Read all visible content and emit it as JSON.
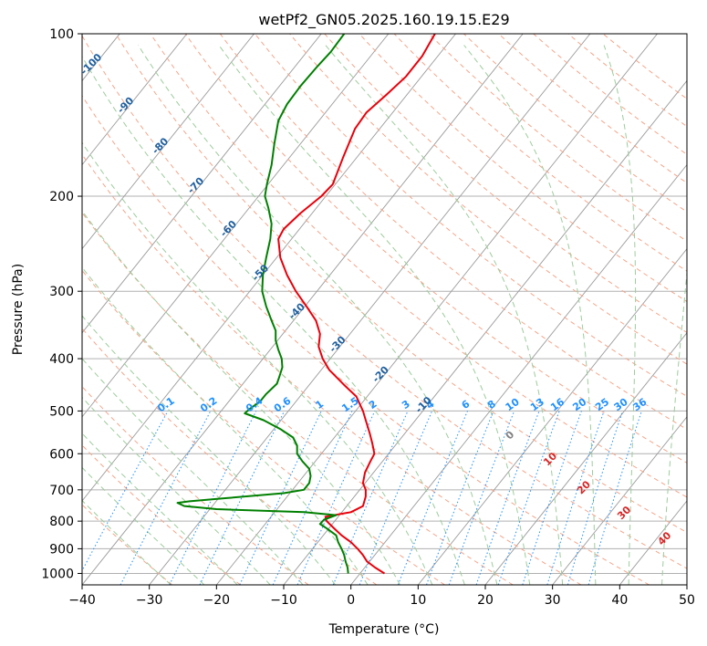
{
  "chart_data": {
    "type": "line",
    "title": "wetPf2_GN05.2025.160.19.15.E29",
    "xlabel": "Temperature (°C)",
    "ylabel": "Pressure (hPa)",
    "xlim": [
      -40,
      50
    ],
    "ylim": [
      1050,
      100
    ],
    "y_scale": "log",
    "grid": true,
    "x_ticks": [
      -40,
      -30,
      -20,
      -10,
      0,
      10,
      20,
      30,
      40,
      50
    ],
    "x_tick_labels": [
      "−40",
      "−30",
      "−20",
      "−10",
      "0",
      "10",
      "20",
      "30",
      "40",
      "50"
    ],
    "y_ticks": [
      1000,
      900,
      800,
      700,
      600,
      500,
      400,
      300,
      200,
      100
    ],
    "y_tick_labels": [
      "1000",
      "900",
      "800",
      "700",
      "600",
      "500",
      "400",
      "300",
      "200",
      "100"
    ],
    "series": [
      {
        "color": "#e8000b",
        "points": [
          [
            1000,
            5.0
          ],
          [
            975,
            3.6
          ],
          [
            950,
            2.4
          ],
          [
            925,
            1.8
          ],
          [
            900,
            1.0
          ],
          [
            875,
            0.0
          ],
          [
            850,
            -1.4
          ],
          [
            825,
            -2.5
          ],
          [
            800,
            -3.6
          ],
          [
            785,
            -3.8
          ],
          [
            770,
            0.0
          ],
          [
            750,
            1.8
          ],
          [
            720,
            2.2
          ],
          [
            700,
            2.2
          ],
          [
            680,
            1.8
          ],
          [
            650,
            2.1
          ],
          [
            620,
            2.9
          ],
          [
            600,
            3.5
          ],
          [
            575,
            3.2
          ],
          [
            550,
            2.8
          ],
          [
            520,
            2.2
          ],
          [
            500,
            1.8
          ],
          [
            470,
            0.8
          ],
          [
            450,
            -0.8
          ],
          [
            420,
            -3.2
          ],
          [
            400,
            -4.2
          ],
          [
            380,
            -4.8
          ],
          [
            360,
            -4.6
          ],
          [
            340,
            -5.2
          ],
          [
            320,
            -6.6
          ],
          [
            300,
            -8.2
          ],
          [
            280,
            -9.5
          ],
          [
            260,
            -10.5
          ],
          [
            240,
            -10.8
          ],
          [
            230,
            -10.0
          ],
          [
            215,
            -7.5
          ],
          [
            200,
            -4.4
          ],
          [
            190,
            -2.7
          ],
          [
            170,
            -1.2
          ],
          [
            150,
            0.6
          ],
          [
            140,
            2.3
          ],
          [
            130,
            5.2
          ],
          [
            120,
            8.2
          ],
          [
            110,
            10.6
          ],
          [
            100,
            12.5
          ]
        ]
      },
      {
        "color": "#008000",
        "points": [
          [
            1000,
            -0.4
          ],
          [
            975,
            -0.5
          ],
          [
            950,
            -0.8
          ],
          [
            925,
            -1.0
          ],
          [
            900,
            -1.4
          ],
          [
            875,
            -1.9
          ],
          [
            850,
            -2.2
          ],
          [
            825,
            -3.6
          ],
          [
            810,
            -4.6
          ],
          [
            795,
            -4.0
          ],
          [
            780,
            -2.2
          ],
          [
            770,
            -7.0
          ],
          [
            760,
            -20.0
          ],
          [
            750,
            -24.8
          ],
          [
            740,
            -25.8
          ],
          [
            735,
            -24.0
          ],
          [
            725,
            -18.5
          ],
          [
            710,
            -10.0
          ],
          [
            700,
            -7.0
          ],
          [
            680,
            -6.2
          ],
          [
            660,
            -6.0
          ],
          [
            640,
            -6.2
          ],
          [
            620,
            -7.2
          ],
          [
            600,
            -8.0
          ],
          [
            580,
            -8.0
          ],
          [
            560,
            -8.6
          ],
          [
            540,
            -10.5
          ],
          [
            520,
            -13.0
          ],
          [
            505,
            -15.8
          ],
          [
            495,
            -15.0
          ],
          [
            480,
            -13.5
          ],
          [
            465,
            -12.6
          ],
          [
            445,
            -11.0
          ],
          [
            430,
            -10.6
          ],
          [
            415,
            -10.2
          ],
          [
            400,
            -10.3
          ],
          [
            385,
            -10.8
          ],
          [
            370,
            -11.2
          ],
          [
            355,
            -11.2
          ],
          [
            340,
            -11.8
          ],
          [
            320,
            -12.6
          ],
          [
            300,
            -13.2
          ],
          [
            280,
            -13.1
          ],
          [
            260,
            -12.6
          ],
          [
            240,
            -12.0
          ],
          [
            225,
            -11.8
          ],
          [
            210,
            -12.3
          ],
          [
            200,
            -12.8
          ],
          [
            190,
            -12.5
          ],
          [
            175,
            -11.8
          ],
          [
            160,
            -11.4
          ],
          [
            145,
            -10.8
          ],
          [
            135,
            -9.5
          ],
          [
            125,
            -7.5
          ],
          [
            115,
            -5.0
          ],
          [
            108,
            -3.0
          ],
          [
            100,
            -1.0
          ]
        ]
      }
    ],
    "isotherm_skew_label": "skew-T",
    "dry_adiabat_labels": [
      "-100",
      "-90",
      "-80",
      "-70",
      "-60",
      "-50",
      "-40",
      "-30",
      "-20",
      "-10"
    ],
    "moist_adiabat_labels": [
      "0",
      "10",
      "20",
      "30",
      "40"
    ],
    "mixing_ratio_labels": [
      "0.1",
      "0.2",
      "0.4",
      "0.6",
      "1",
      "1.5",
      "2",
      "3",
      "4",
      "6",
      "8",
      "10",
      "13",
      "16",
      "20",
      "25",
      "30",
      "36"
    ],
    "mixing_ratio_values": [
      0.1,
      0.2,
      0.4,
      0.6,
      1,
      1.5,
      2,
      3,
      4,
      6,
      8,
      10,
      13,
      16,
      20,
      25,
      30,
      36
    ],
    "colors": {
      "temperature": "#e8000b",
      "dewpoint": "#008000",
      "isotherm": "#9a9a9a",
      "isobar": "#b0b0b0",
      "dry_adiabat": "#f4a58a",
      "moist_adiabat": "#9ccc9c",
      "mixing_ratio": "#1e90ff"
    }
  }
}
